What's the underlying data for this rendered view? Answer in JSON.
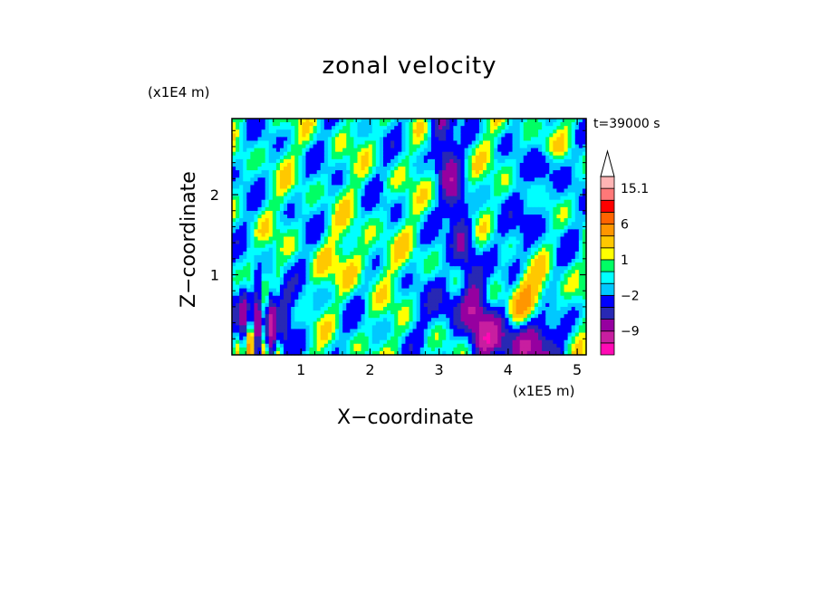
{
  "chart_data": {
    "type": "heatmap",
    "title": "zonal velocity",
    "xlabel": "X−coordinate",
    "ylabel": "Z−coordinate",
    "x_unit_label": "(x1E5 m)",
    "y_unit_label": "(x1E4 m)",
    "time_label": "t=39000 s",
    "xlim": [
      0,
      5.13
    ],
    "ylim": [
      0,
      2.95
    ],
    "x_ticks": [
      "1",
      "2",
      "3",
      "4",
      "5"
    ],
    "x_tick_values": [
      1,
      2,
      3,
      4,
      5
    ],
    "y_ticks": [
      "1",
      "2"
    ],
    "y_tick_values": [
      1,
      2
    ],
    "colorbar_labels": [
      "15.1",
      "6",
      "1",
      "−2",
      "−9"
    ],
    "colorbar_levels": [
      -15,
      -12,
      -9,
      -6,
      -4,
      -2,
      -1,
      0,
      1,
      2,
      4,
      6,
      9,
      12,
      15.1
    ],
    "colorbar_colors": [
      "#ff0ab4",
      "#c81ea0",
      "#9600a0",
      "#2828b4",
      "#0000ff",
      "#00c8ff",
      "#00ffff",
      "#00ff64",
      "#ffff00",
      "#ffc800",
      "#ff9600",
      "#ff6400",
      "#ff0000",
      "#ff7878",
      "#ffb4b4"
    ],
    "field_features": [
      {
        "kind": "background",
        "value": -0.5
      },
      {
        "kind": "blob",
        "x": 1.8,
        "z": 1.2,
        "value": 2
      },
      {
        "kind": "jet",
        "x0": 3.0,
        "z0": 2.95,
        "x1": 3.65,
        "z1": 0.1,
        "value": -5
      },
      {
        "kind": "jet",
        "x0": 4.6,
        "z0": 2.4,
        "x1": 3.75,
        "z1": 0.2,
        "value": -3
      },
      {
        "kind": "blob",
        "x": 4.25,
        "z": 0.15,
        "value": -8
      },
      {
        "kind": "blob",
        "x": 4.15,
        "z": 0.7,
        "value": 5
      },
      {
        "kind": "blob",
        "x": 0.45,
        "z": 0.5,
        "value": -6
      },
      {
        "kind": "blob",
        "x": 3.3,
        "z": 0.55,
        "value": -4
      }
    ]
  }
}
